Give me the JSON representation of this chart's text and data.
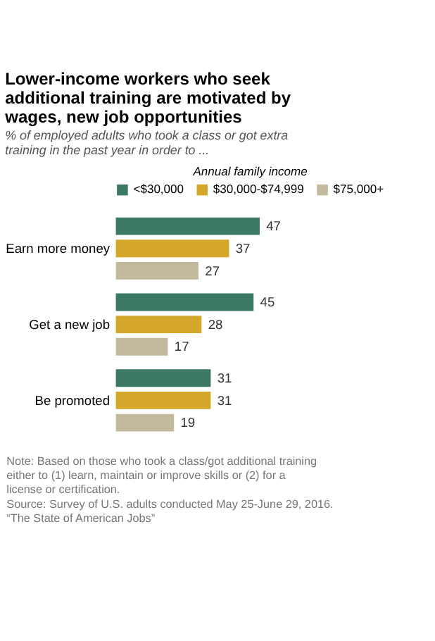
{
  "chart_data": {
    "type": "bar",
    "orientation": "horizontal",
    "title": "Lower-income workers who seek additional training are motivated by wages, new job opportunities",
    "subtitle": "% of employed adults who took a class or got extra training in the past year in order to ...",
    "legend_title": "Annual family income",
    "legend": "top",
    "categories": [
      "Earn more money",
      "Get a new job",
      "Be promoted"
    ],
    "series": [
      {
        "name": "<$30,000",
        "color": "#3b7866",
        "values": [
          47,
          45,
          31
        ]
      },
      {
        "name": "$30,000-$74,999",
        "color": "#d4a62a",
        "values": [
          37,
          28,
          31
        ]
      },
      {
        "name": "$75,000+",
        "color": "#c3ba9d",
        "values": [
          27,
          17,
          19
        ]
      }
    ],
    "data_labels": true,
    "grid": false,
    "annotations": [
      "Note: Based on those who took a class/got additional training either to (1) learn, maintain or improve skills or (2) for a license or certification.",
      "Source: Survey of U.S. adults conducted May 25-June 29, 2016.",
      "“The State of American Jobs”"
    ]
  }
}
